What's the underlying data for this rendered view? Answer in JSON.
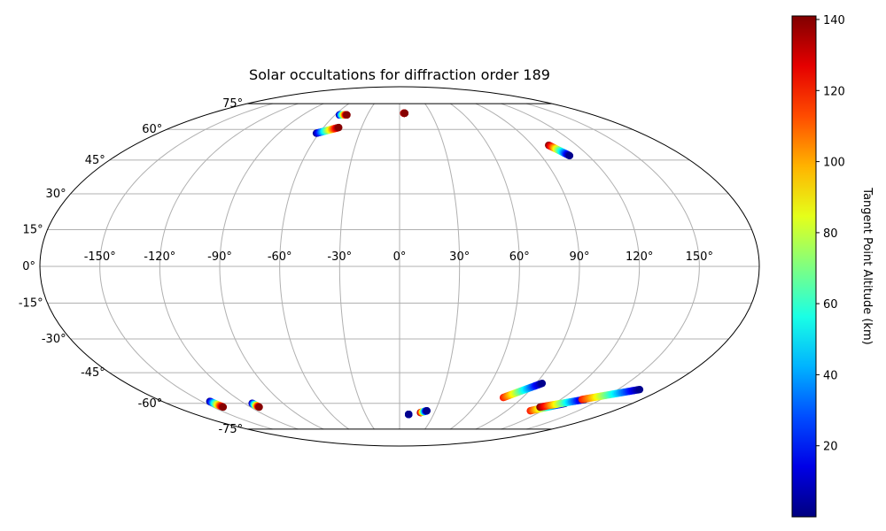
{
  "chart_data": {
    "type": "scatter",
    "title": "Solar occultations for diffraction order 189",
    "projection": "mollweide",
    "grid": true,
    "lon_ticks": [
      "-150°",
      "-120°",
      "-90°",
      "-60°",
      "-30°",
      "0°",
      "30°",
      "60°",
      "90°",
      "120°",
      "150°"
    ],
    "lon_tick_values": [
      -150,
      -120,
      -90,
      -60,
      -30,
      0,
      30,
      60,
      90,
      120,
      150
    ],
    "lat_ticks": [
      "75°",
      "60°",
      "45°",
      "30°",
      "15°",
      "0°",
      "-15°",
      "-30°",
      "-45°",
      "-60°",
      "-75°"
    ],
    "lat_tick_values": [
      75,
      60,
      45,
      30,
      15,
      0,
      -15,
      -30,
      -45,
      -60,
      -75
    ],
    "colorbar": {
      "label": "Tangent Point Altitude (km)",
      "ticks": [
        "20",
        "40",
        "60",
        "80",
        "100",
        "120",
        "140"
      ],
      "tick_values": [
        20,
        40,
        60,
        80,
        100,
        120,
        140
      ],
      "range": [
        0,
        141
      ],
      "colormap": "jet"
    },
    "tracks": [
      {
        "start": {
          "lon": -56,
          "lat": 68,
          "alt": 2
        },
        "end": {
          "lon": -49,
          "lat": 68,
          "alt": 140
        }
      },
      {
        "start": {
          "lon": -62,
          "lat": 58,
          "alt": 2
        },
        "end": {
          "lon": -48,
          "lat": 61,
          "alt": 140
        }
      },
      {
        "start": {
          "lon": 4,
          "lat": 69,
          "alt": 125
        },
        "end": {
          "lon": 5,
          "lat": 69,
          "alt": 140
        }
      },
      {
        "start": {
          "lon": 101,
          "lat": 52,
          "alt": 140
        },
        "end": {
          "lon": 108,
          "lat": 47,
          "alt": 2
        }
      },
      {
        "start": {
          "lon": -144,
          "lat": -59,
          "alt": 2
        },
        "end": {
          "lon": -142,
          "lat": -62,
          "alt": 140
        }
      },
      {
        "start": {
          "lon": -114,
          "lat": -60,
          "alt": 2
        },
        "end": {
          "lon": -113,
          "lat": -62,
          "alt": 140
        }
      },
      {
        "start": {
          "lon": 8,
          "lat": -66,
          "alt": 140
        },
        "end": {
          "lon": 8,
          "lat": -66,
          "alt": 2
        }
      },
      {
        "start": {
          "lon": 18,
          "lat": -65,
          "alt": 140
        },
        "end": {
          "lon": 23,
          "lat": -64,
          "alt": 2
        }
      },
      {
        "start": {
          "lon": 76,
          "lat": -57,
          "alt": 120
        },
        "end": {
          "lon": 94,
          "lat": -50,
          "alt": 2
        }
      },
      {
        "start": {
          "lon": 110,
          "lat": -64,
          "alt": 120
        },
        "end": {
          "lon": 128,
          "lat": -60,
          "alt": 2
        }
      },
      {
        "start": {
          "lon": 113,
          "lat": -62,
          "alt": 140
        },
        "end": {
          "lon": 138,
          "lat": -58,
          "alt": 2
        }
      },
      {
        "start": {
          "lon": 136,
          "lat": -58,
          "alt": 120
        },
        "end": {
          "lon": 165,
          "lat": -53,
          "alt": 2
        }
      }
    ]
  }
}
